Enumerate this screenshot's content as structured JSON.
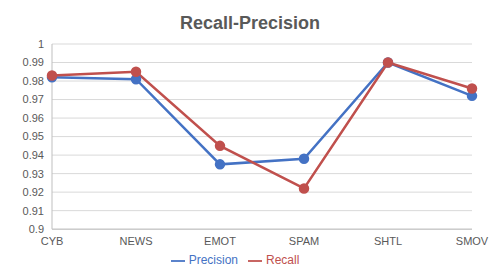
{
  "chart_data": {
    "type": "line",
    "title": "Recall-Precision",
    "categories": [
      "CYB",
      "NEWS",
      "EMOT",
      "SPAM",
      "SHTL",
      "SMOV"
    ],
    "series": [
      {
        "name": "Precision",
        "color": "#4472c4",
        "marker": "circle",
        "line_style": "solid",
        "values": [
          0.982,
          0.981,
          0.935,
          0.938,
          0.99,
          0.972
        ]
      },
      {
        "name": "Recall",
        "color": "#c0504d",
        "marker": "circle",
        "line_style": "solid",
        "values": [
          0.983,
          0.985,
          0.945,
          0.922,
          0.99,
          0.976
        ]
      }
    ],
    "ylim": [
      0.9,
      1
    ],
    "yticks": [
      0.9,
      0.91,
      0.92,
      0.93,
      0.94,
      0.95,
      0.96,
      0.97,
      0.98,
      0.99,
      1
    ],
    "grid": true,
    "legend": "bottom"
  }
}
